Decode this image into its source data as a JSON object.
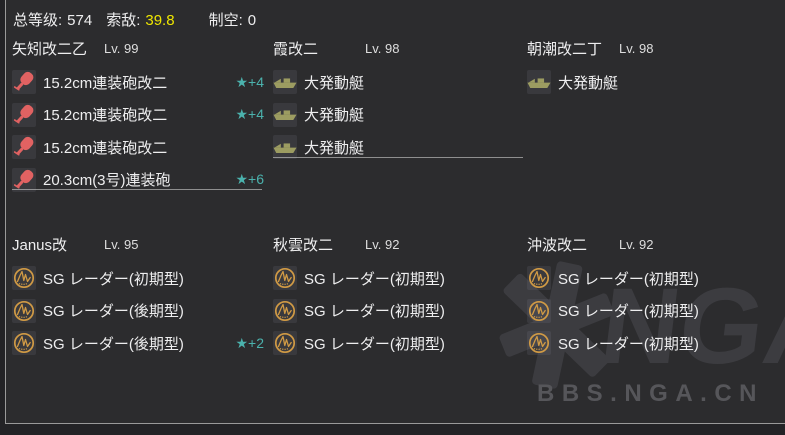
{
  "topbar": {
    "total_level_label": "总等级:",
    "total_level_value": "574",
    "los_label": "索敌:",
    "los_value": "39.8",
    "air_label": "制空:",
    "air_value": "0"
  },
  "fleet": {
    "ships": [
      {
        "name": "矢矧改二乙",
        "level": "Lv. 99",
        "separator": true,
        "equipment": [
          {
            "icon": "red-gun-icon",
            "name": "15.2cm連装砲改二",
            "stars": "★+4"
          },
          {
            "icon": "red-gun-icon",
            "name": "15.2cm連装砲改二",
            "stars": "★+4"
          },
          {
            "icon": "red-gun-icon",
            "name": "15.2cm連装砲改二",
            "stars": ""
          },
          {
            "icon": "red-gun-icon",
            "name": "20.3cm(3号)連装砲",
            "stars": "★+6"
          }
        ]
      },
      {
        "name": "霞改二",
        "level": "Lv. 98",
        "separator": true,
        "equipment": [
          {
            "icon": "landing-craft-icon",
            "name": "大発動艇",
            "stars": ""
          },
          {
            "icon": "landing-craft-icon",
            "name": "大発動艇",
            "stars": ""
          },
          {
            "icon": "landing-craft-icon",
            "name": "大発動艇",
            "stars": ""
          }
        ]
      },
      {
        "name": "朝潮改二丁",
        "level": "Lv. 98",
        "separator": false,
        "equipment": [
          {
            "icon": "landing-craft-icon",
            "name": "大発動艇",
            "stars": ""
          }
        ]
      },
      {
        "name": "Janus改",
        "level": "Lv. 95",
        "separator": false,
        "equipment": [
          {
            "icon": "radar-icon",
            "name": "SG レーダー(初期型)",
            "stars": ""
          },
          {
            "icon": "radar-icon",
            "name": "SG レーダー(後期型)",
            "stars": ""
          },
          {
            "icon": "radar-icon",
            "name": "SG レーダー(後期型)",
            "stars": "★+2"
          }
        ]
      },
      {
        "name": "秋雲改二",
        "level": "Lv. 92",
        "separator": false,
        "equipment": [
          {
            "icon": "radar-icon",
            "name": "SG レーダー(初期型)",
            "stars": ""
          },
          {
            "icon": "radar-icon",
            "name": "SG レーダー(初期型)",
            "stars": ""
          },
          {
            "icon": "radar-icon",
            "name": "SG レーダー(初期型)",
            "stars": ""
          }
        ]
      },
      {
        "name": "沖波改二",
        "level": "Lv. 92",
        "separator": false,
        "equipment": [
          {
            "icon": "radar-icon",
            "name": "SG レーダー(初期型)",
            "stars": ""
          },
          {
            "icon": "radar-icon",
            "name": "SG レーダー(初期型)",
            "stars": ""
          },
          {
            "icon": "radar-icon",
            "name": "SG レーダー(初期型)",
            "stars": ""
          }
        ]
      }
    ]
  },
  "watermark": {
    "logo_text": "NGA",
    "site_text": "BBS.NGA.CN"
  },
  "colors": {
    "background": "#2c2c2e",
    "outer_background": "#232326",
    "border": "#9a9a9a",
    "text": "#eeeeef",
    "los_value": "#eee600",
    "star_accent": "#4bb2ad",
    "gun_icon": "#e16262",
    "landing_craft_icon": "#9c9c61",
    "radar_icon": "#d09a45",
    "separator": "#8f8f8f",
    "watermark": "#3c3c40"
  }
}
